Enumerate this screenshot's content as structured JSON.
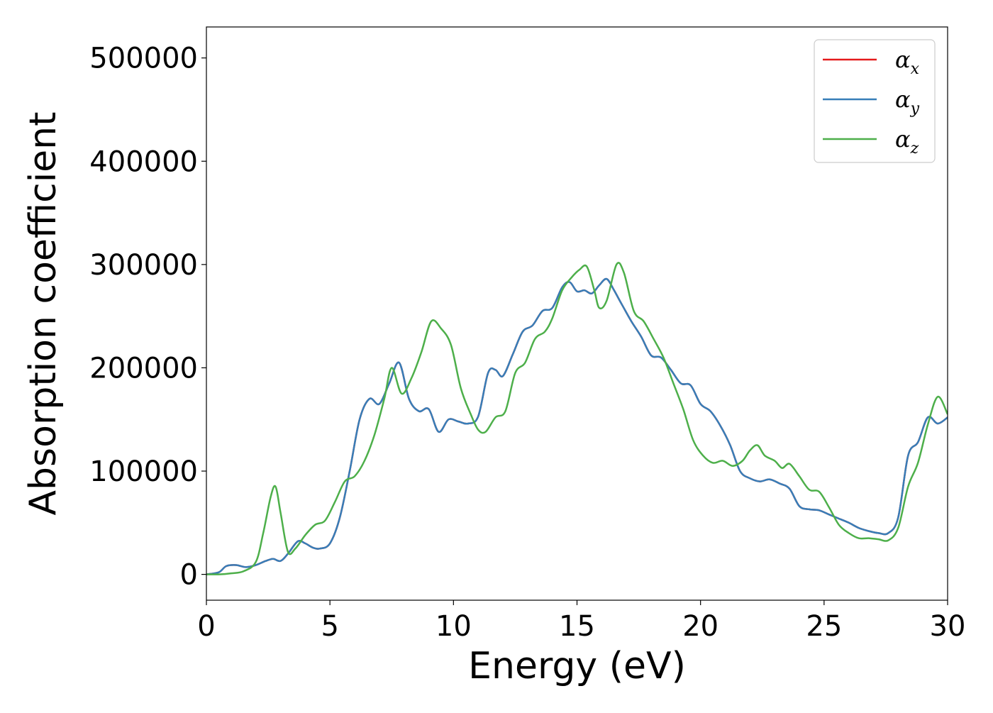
{
  "chart_data": {
    "type": "line",
    "xlabel": "Energy (eV)",
    "ylabel": "Absorption coefficient",
    "xlim": [
      0,
      30
    ],
    "ylim": [
      -25000,
      530000
    ],
    "xticks": [
      0,
      5,
      10,
      15,
      20,
      25,
      30
    ],
    "xtick_labels": [
      "0",
      "5",
      "10",
      "15",
      "20",
      "25",
      "30"
    ],
    "yticks": [
      0,
      100000,
      200000,
      300000,
      400000,
      500000
    ],
    "ytick_labels": [
      "0",
      "100000",
      "200000",
      "300000",
      "400000",
      "500000"
    ],
    "grid": false,
    "legend_position": "top-right",
    "series": [
      {
        "name": "α_x",
        "legend_base": "α",
        "legend_sub": "x",
        "color": "#e41a1c",
        "x": [
          0,
          0.5,
          0.8,
          1.2,
          1.6,
          2.0,
          2.4,
          2.7,
          3.0,
          3.3,
          3.7,
          4.0,
          4.3,
          4.6,
          5.0,
          5.4,
          5.8,
          6.2,
          6.6,
          7.0,
          7.4,
          7.8,
          8.2,
          8.6,
          9.0,
          9.4,
          9.8,
          10.2,
          10.6,
          11.0,
          11.4,
          11.7,
          12.0,
          12.4,
          12.8,
          13.2,
          13.6,
          14.0,
          14.4,
          14.7,
          15.0,
          15.3,
          15.6,
          15.9,
          16.2,
          16.5,
          16.8,
          17.2,
          17.6,
          18.0,
          18.4,
          18.8,
          19.2,
          19.6,
          20.0,
          20.4,
          20.8,
          21.2,
          21.6,
          22.0,
          22.4,
          22.8,
          23.2,
          23.6,
          24.0,
          24.4,
          24.8,
          25.2,
          25.6,
          26.0,
          26.4,
          26.8,
          27.2,
          27.6,
          28.0,
          28.4,
          28.8,
          29.2,
          29.6,
          30.0
        ],
        "y": [
          0,
          2000,
          8000,
          9000,
          7000,
          9000,
          13000,
          15000,
          13000,
          20000,
          32000,
          30000,
          26000,
          25000,
          30000,
          55000,
          100000,
          150000,
          170000,
          165000,
          185000,
          205000,
          170000,
          158000,
          160000,
          138000,
          150000,
          148000,
          146000,
          153000,
          195000,
          198000,
          192000,
          213000,
          235000,
          241000,
          255000,
          258000,
          278000,
          283000,
          274000,
          275000,
          272000,
          280000,
          286000,
          275000,
          262000,
          245000,
          230000,
          212000,
          210000,
          198000,
          185000,
          183000,
          165000,
          158000,
          144000,
          125000,
          100000,
          93000,
          90000,
          92000,
          88000,
          83000,
          66000,
          63000,
          62000,
          58000,
          54000,
          50000,
          45000,
          42000,
          40000,
          40000,
          55000,
          115000,
          128000,
          152000,
          146000,
          152000
        ]
      },
      {
        "name": "α_y",
        "legend_base": "α",
        "legend_sub": "y",
        "color": "#377eb8",
        "x": [
          0,
          0.5,
          0.8,
          1.2,
          1.6,
          2.0,
          2.4,
          2.7,
          3.0,
          3.3,
          3.7,
          4.0,
          4.3,
          4.6,
          5.0,
          5.4,
          5.8,
          6.2,
          6.6,
          7.0,
          7.4,
          7.8,
          8.2,
          8.6,
          9.0,
          9.4,
          9.8,
          10.2,
          10.6,
          11.0,
          11.4,
          11.7,
          12.0,
          12.4,
          12.8,
          13.2,
          13.6,
          14.0,
          14.4,
          14.7,
          15.0,
          15.3,
          15.6,
          15.9,
          16.2,
          16.5,
          16.8,
          17.2,
          17.6,
          18.0,
          18.4,
          18.8,
          19.2,
          19.6,
          20.0,
          20.4,
          20.8,
          21.2,
          21.6,
          22.0,
          22.4,
          22.8,
          23.2,
          23.6,
          24.0,
          24.4,
          24.8,
          25.2,
          25.6,
          26.0,
          26.4,
          26.8,
          27.2,
          27.6,
          28.0,
          28.4,
          28.8,
          29.2,
          29.6,
          30.0
        ],
        "y": [
          0,
          2000,
          8000,
          9000,
          7000,
          9000,
          13000,
          15000,
          13000,
          20000,
          32000,
          30000,
          26000,
          25000,
          30000,
          55000,
          100000,
          150000,
          170000,
          165000,
          185000,
          205000,
          170000,
          158000,
          160000,
          138000,
          150000,
          148000,
          146000,
          153000,
          195000,
          198000,
          192000,
          213000,
          235000,
          241000,
          255000,
          258000,
          278000,
          283000,
          274000,
          275000,
          272000,
          280000,
          286000,
          275000,
          262000,
          245000,
          230000,
          212000,
          210000,
          198000,
          185000,
          183000,
          165000,
          158000,
          144000,
          125000,
          100000,
          93000,
          90000,
          92000,
          88000,
          83000,
          66000,
          63000,
          62000,
          58000,
          54000,
          50000,
          45000,
          42000,
          40000,
          40000,
          55000,
          115000,
          128000,
          152000,
          146000,
          152000
        ]
      },
      {
        "name": "α_z",
        "legend_base": "α",
        "legend_sub": "z",
        "color": "#4daf4a",
        "x": [
          0,
          0.5,
          1.0,
          1.5,
          2.0,
          2.3,
          2.6,
          2.8,
          3.0,
          3.3,
          3.6,
          4.0,
          4.4,
          4.8,
          5.2,
          5.6,
          6.0,
          6.4,
          6.8,
          7.2,
          7.5,
          7.9,
          8.3,
          8.7,
          9.1,
          9.5,
          9.9,
          10.3,
          10.7,
          11.0,
          11.3,
          11.7,
          12.1,
          12.5,
          12.9,
          13.3,
          13.7,
          14.0,
          14.4,
          14.8,
          15.1,
          15.4,
          15.7,
          15.9,
          16.2,
          16.6,
          16.9,
          17.3,
          17.7,
          18.1,
          18.5,
          18.9,
          19.3,
          19.7,
          20.1,
          20.5,
          20.9,
          21.3,
          21.7,
          22.0,
          22.3,
          22.6,
          23.0,
          23.3,
          23.6,
          24.0,
          24.4,
          24.8,
          25.2,
          25.6,
          26.0,
          26.4,
          26.8,
          27.2,
          27.6,
          28.0,
          28.4,
          28.8,
          29.2,
          29.6,
          30.0
        ],
        "y": [
          0,
          0,
          1000,
          3000,
          12000,
          40000,
          75000,
          85000,
          60000,
          22000,
          25000,
          38000,
          48000,
          52000,
          70000,
          90000,
          95000,
          110000,
          135000,
          170000,
          200000,
          175000,
          190000,
          215000,
          245000,
          238000,
          222000,
          180000,
          155000,
          140000,
          138000,
          152000,
          158000,
          195000,
          205000,
          228000,
          235000,
          248000,
          275000,
          288000,
          295000,
          298000,
          275000,
          258000,
          265000,
          300000,
          292000,
          255000,
          245000,
          228000,
          210000,
          185000,
          160000,
          130000,
          115000,
          108000,
          110000,
          105000,
          110000,
          120000,
          125000,
          115000,
          110000,
          103000,
          107000,
          95000,
          82000,
          80000,
          65000,
          48000,
          40000,
          35000,
          35000,
          34000,
          33000,
          45000,
          85000,
          108000,
          145000,
          172000,
          155000
        ]
      }
    ]
  }
}
